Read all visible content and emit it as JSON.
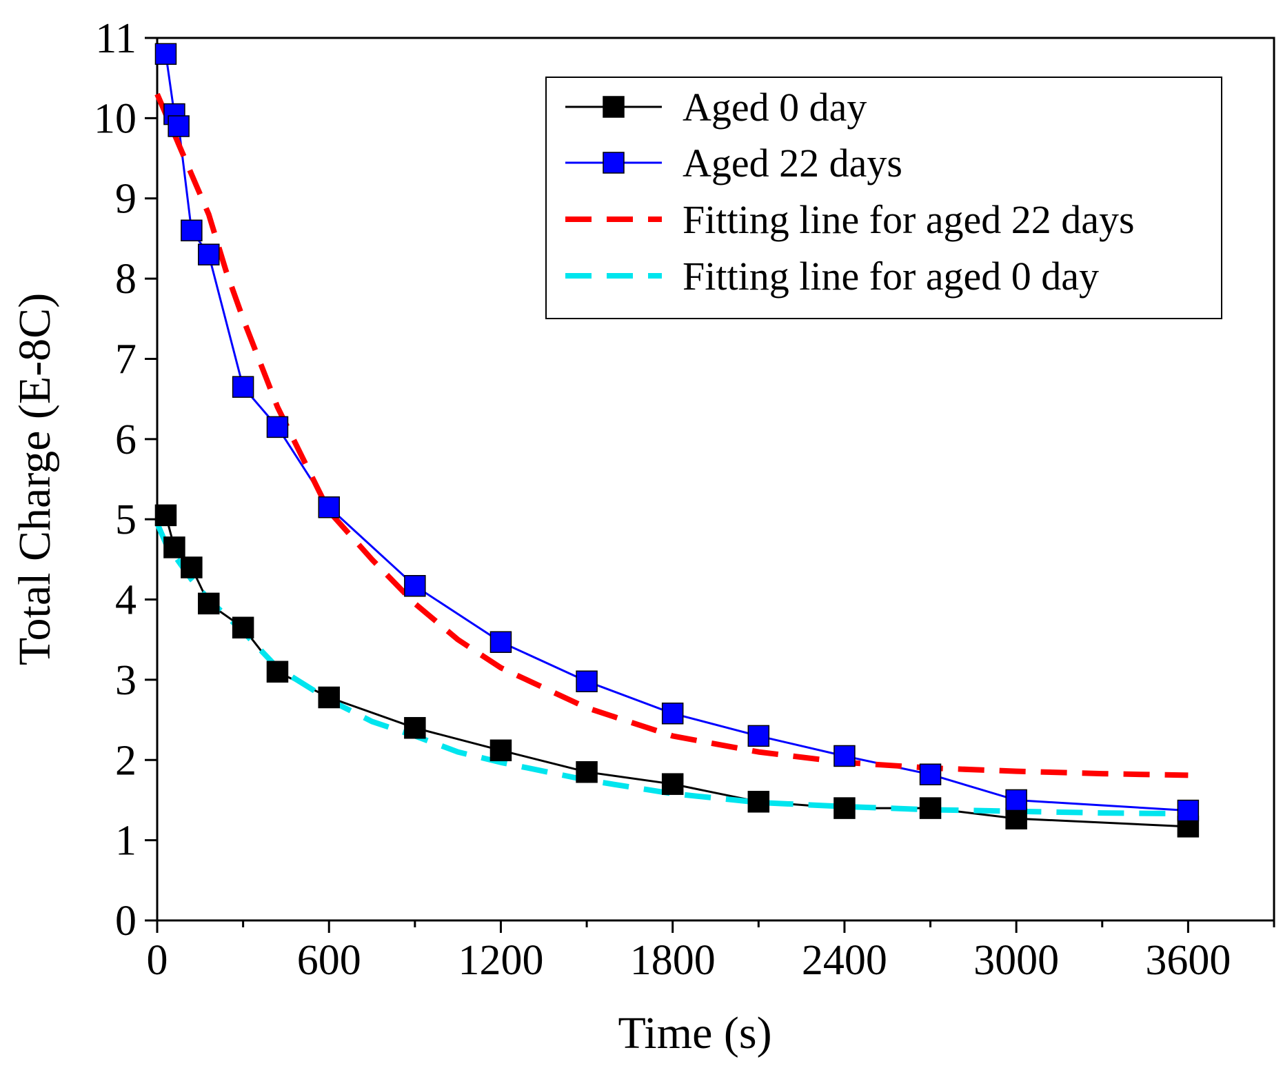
{
  "chart_data": {
    "type": "line",
    "title": "",
    "xlabel": "Time (s)",
    "ylabel": "Total Charge (E-8C)",
    "xlim": [
      0,
      3900
    ],
    "ylim": [
      0,
      11
    ],
    "x_ticks": [
      0,
      600,
      1200,
      1800,
      2400,
      3000,
      3600
    ],
    "x_tick_labels": [
      "0",
      "600",
      "1200",
      "1800",
      "2400",
      "3000",
      "3600"
    ],
    "x_minor_step": 300,
    "y_ticks": [
      0,
      1,
      2,
      3,
      4,
      5,
      6,
      7,
      8,
      9,
      10,
      11
    ],
    "y_tick_labels": [
      "0",
      "1",
      "2",
      "3",
      "4",
      "5",
      "6",
      "7",
      "8",
      "9",
      "10",
      "11"
    ],
    "grid": false,
    "legend_position": "top-right",
    "series": [
      {
        "name": "Aged 0 day",
        "style": "line-square",
        "color": "#000000",
        "x": [
          30,
          60,
          120,
          180,
          300,
          420,
          600,
          900,
          1200,
          1500,
          1800,
          2100,
          2400,
          2700,
          3000,
          3600
        ],
        "y": [
          5.05,
          4.65,
          4.4,
          3.95,
          3.65,
          3.1,
          2.78,
          2.4,
          2.12,
          1.85,
          1.7,
          1.48,
          1.4,
          1.4,
          1.27,
          1.17
        ]
      },
      {
        "name": "Aged 22 days",
        "style": "line-square",
        "color": "#0000ff",
        "x": [
          30,
          60,
          75,
          120,
          180,
          300,
          420,
          600,
          900,
          1200,
          1500,
          1800,
          2100,
          2400,
          2700,
          3000,
          3600
        ],
        "y": [
          10.8,
          10.05,
          9.9,
          8.6,
          8.3,
          6.65,
          6.15,
          5.15,
          4.17,
          3.47,
          2.98,
          2.58,
          2.3,
          2.05,
          1.82,
          1.5,
          1.37
        ]
      },
      {
        "name": "Fitting line for aged 22 days",
        "style": "dashed",
        "color": "#ff0000",
        "x": [
          0,
          30,
          60,
          120,
          180,
          240,
          300,
          420,
          600,
          750,
          900,
          1050,
          1200,
          1500,
          1800,
          2100,
          2400,
          2700,
          3000,
          3300,
          3600
        ],
        "y": [
          10.3,
          10.05,
          9.8,
          9.3,
          8.8,
          8.1,
          7.5,
          6.4,
          5.1,
          4.5,
          3.95,
          3.5,
          3.15,
          2.65,
          2.3,
          2.1,
          1.97,
          1.9,
          1.86,
          1.83,
          1.81
        ]
      },
      {
        "name": "Fitting line for aged 0 day",
        "style": "dashed",
        "color": "#00e5ee",
        "x": [
          0,
          30,
          60,
          120,
          180,
          300,
          420,
          600,
          750,
          900,
          1050,
          1200,
          1500,
          1800,
          2100,
          2400,
          2700,
          3000,
          3300,
          3600
        ],
        "y": [
          4.95,
          4.7,
          4.55,
          4.25,
          4.0,
          3.6,
          3.15,
          2.75,
          2.48,
          2.3,
          2.1,
          1.97,
          1.75,
          1.58,
          1.47,
          1.42,
          1.38,
          1.36,
          1.34,
          1.33
        ]
      }
    ]
  }
}
